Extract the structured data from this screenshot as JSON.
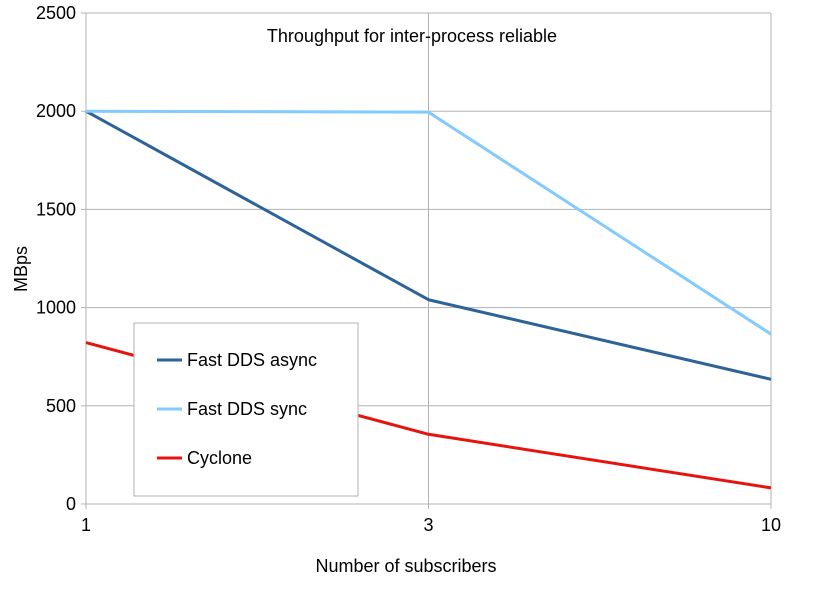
{
  "chart_data": {
    "type": "line",
    "title": "Throughput for inter-process reliable",
    "xlabel": "Number of subscribers",
    "ylabel": "MBps",
    "categories": [
      "1",
      "3",
      "10"
    ],
    "ylim": [
      0,
      2500
    ],
    "yticks": [
      0,
      500,
      1000,
      1500,
      2000,
      2500
    ],
    "grid": true,
    "legend_position": "bottom-left",
    "series": [
      {
        "name": "Fast DDS async",
        "color": "#2e6399",
        "values": [
          2000,
          1040,
          635
        ]
      },
      {
        "name": "Fast DDS sync",
        "color": "#83caff",
        "values": [
          2000,
          1995,
          865
        ]
      },
      {
        "name": "Cyclone",
        "color": "#e8130d",
        "values": [
          822,
          355,
          82
        ]
      }
    ]
  }
}
